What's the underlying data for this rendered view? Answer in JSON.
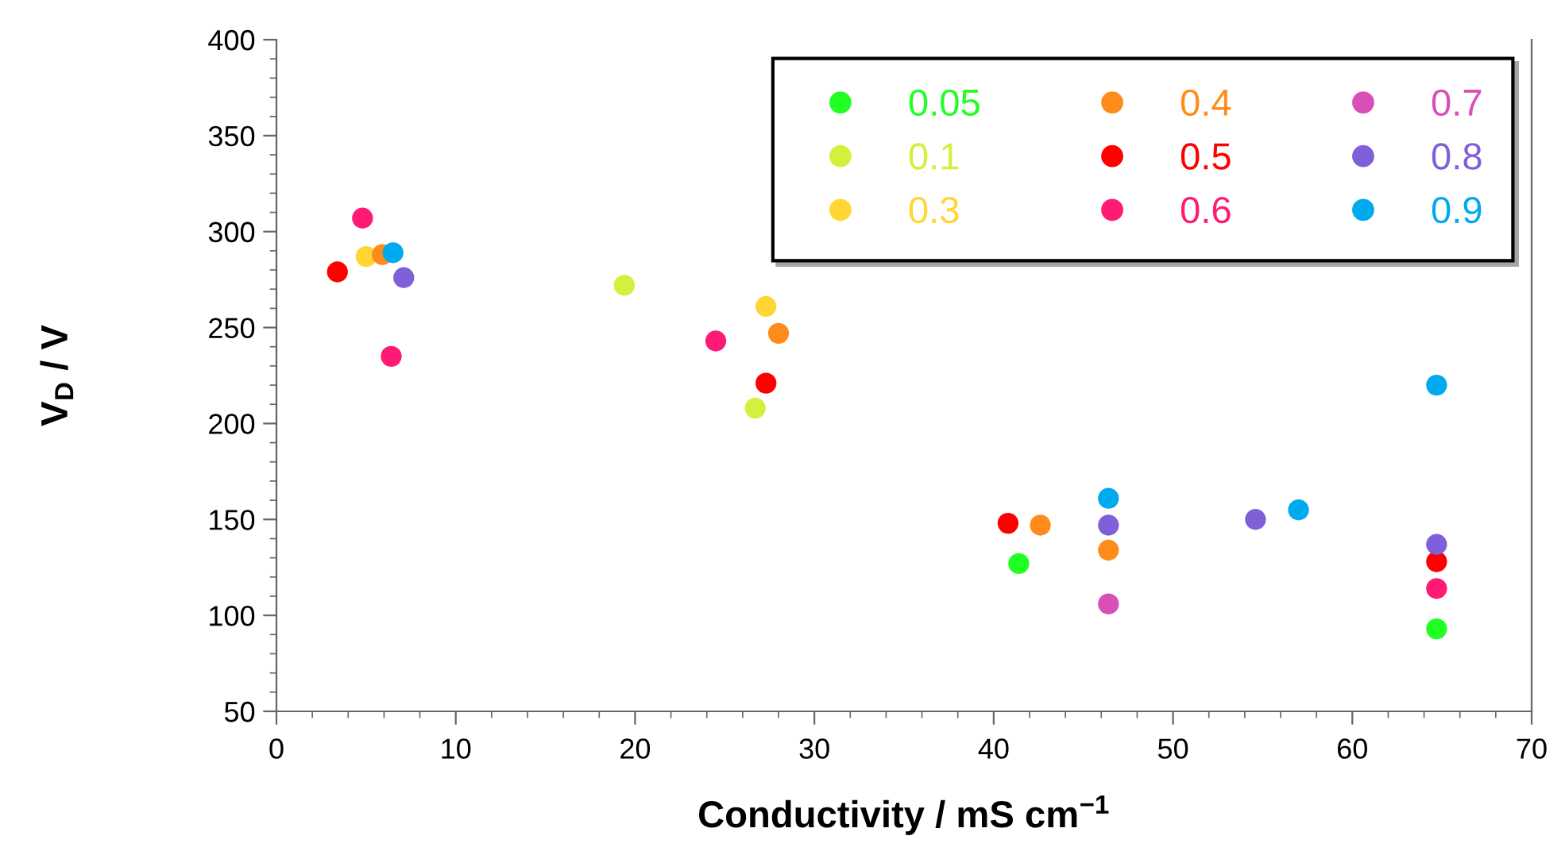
{
  "chart_data": {
    "type": "scatter",
    "xlabel": "Conductivity / mS cm$^{−1}$",
    "ylabel": "V$_{D}$ / V",
    "xlim": [
      0,
      70
    ],
    "ylim": [
      50,
      400
    ],
    "xticks": [
      0,
      {
        "value": 2,
        "label": null
      },
      {
        "value": 4,
        "label": null
      },
      {
        "value": 6,
        "label": null
      },
      {
        "value": 8,
        "label": null
      },
      10,
      {
        "value": 12,
        "label": null
      },
      {
        "value": 14,
        "label": null
      },
      {
        "value": 16,
        "label": null
      },
      {
        "value": 18,
        "label": null
      },
      20,
      {
        "value": 22,
        "label": null
      },
      {
        "value": 24,
        "label": null
      },
      {
        "value": 26,
        "label": null
      },
      {
        "value": 28,
        "label": null
      },
      30,
      {
        "value": 32,
        "label": null
      },
      {
        "value": 34,
        "label": null
      },
      {
        "value": 36,
        "label": null
      },
      {
        "value": 38,
        "label": null
      },
      40,
      {
        "value": 42,
        "label": null
      },
      {
        "value": 44,
        "label": null
      },
      {
        "value": 46,
        "label": null
      },
      {
        "value": 48,
        "label": null
      },
      50,
      {
        "value": 52,
        "label": null
      },
      {
        "value": 54,
        "label": null
      },
      {
        "value": 56,
        "label": null
      },
      {
        "value": 58,
        "label": null
      },
      60,
      {
        "value": 62,
        "label": null
      },
      {
        "value": 64,
        "label": null
      },
      {
        "value": 66,
        "label": null
      },
      {
        "value": 68,
        "label": null
      },
      70
    ],
    "yticks": [
      50,
      {
        "value": 60,
        "label": null
      },
      {
        "value": 70,
        "label": null
      },
      {
        "value": 80,
        "label": null
      },
      {
        "value": 90,
        "label": null
      },
      100,
      {
        "value": 110,
        "label": null
      },
      {
        "value": 120,
        "label": null
      },
      {
        "value": 130,
        "label": null
      },
      {
        "value": 140,
        "label": null
      },
      150,
      {
        "value": 160,
        "label": null
      },
      {
        "value": 170,
        "label": null
      },
      {
        "value": 180,
        "label": null
      },
      {
        "value": 190,
        "label": null
      },
      200,
      {
        "value": 210,
        "label": null
      },
      {
        "value": 220,
        "label": null
      },
      {
        "value": 230,
        "label": null
      },
      {
        "value": 240,
        "label": null
      },
      250,
      {
        "value": 260,
        "label": null
      },
      {
        "value": 270,
        "label": null
      },
      {
        "value": 280,
        "label": null
      },
      {
        "value": 290,
        "label": null
      },
      300,
      {
        "value": 310,
        "label": null
      },
      {
        "value": 320,
        "label": null
      },
      {
        "value": 330,
        "label": null
      },
      {
        "value": 340,
        "label": null
      },
      350,
      {
        "value": 360,
        "label": null
      },
      {
        "value": 370,
        "label": null
      },
      {
        "value": 380,
        "label": null
      },
      {
        "value": 390,
        "label": null
      },
      400
    ],
    "marker": "circle",
    "grid": false,
    "legend": "top right",
    "series": [
      {
        "name": "0.05",
        "color": "#22ff22",
        "x": [
          41.4,
          46.4,
          64.7
        ],
        "values": [
          127,
          null,
          93
        ]
      },
      {
        "name": "0.1",
        "color": "#d4f03c",
        "x": [
          19.4,
          26.7
        ],
        "values": [
          272,
          208
        ]
      },
      {
        "name": "0.3",
        "color": "#ffd633",
        "x": [
          5.0,
          27.3
        ],
        "values": [
          287,
          261
        ]
      },
      {
        "name": "0.4",
        "color": "#ff8c1a",
        "x": [
          5.9,
          28.0,
          42.6,
          46.4
        ],
        "values": [
          288,
          247,
          147,
          134
        ]
      },
      {
        "name": "0.5",
        "color": "#ff0000",
        "x": [
          3.4,
          27.3,
          40.8,
          46.4,
          64.7
        ],
        "values": [
          279,
          221,
          148,
          null,
          128
        ]
      },
      {
        "name": "0.6",
        "color": "#ff1a75",
        "x": [
          4.8,
          6.4,
          24.5,
          46.4,
          64.7
        ],
        "values": [
          307,
          235,
          243,
          null,
          114
        ]
      },
      {
        "name": "0.7",
        "color": "#d94fb8",
        "x": [
          46.4
        ],
        "values": [
          106
        ]
      },
      {
        "name": "0.8",
        "color": "#8060d8",
        "x": [
          7.1,
          46.4,
          54.6,
          64.7
        ],
        "values": [
          276,
          147,
          150,
          137
        ]
      },
      {
        "name": "0.9",
        "color": "#00aaee",
        "x": [
          6.5,
          46.4,
          57.0,
          64.7
        ],
        "values": [
          289,
          161,
          155,
          220
        ]
      }
    ]
  }
}
